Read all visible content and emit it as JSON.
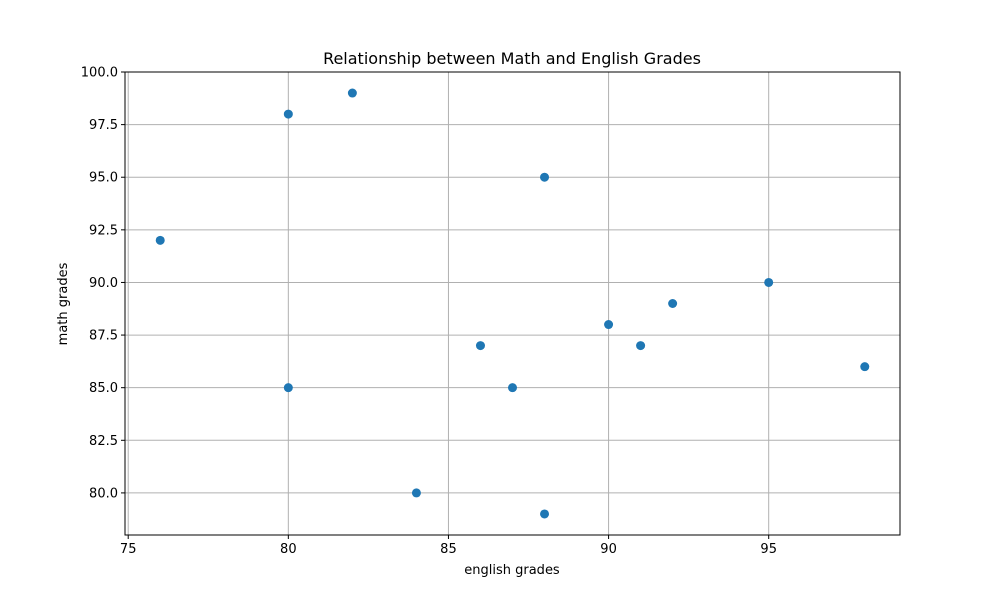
{
  "chart_data": {
    "type": "scatter",
    "title": "Relationship between Math and English Grades",
    "xlabel": "english grades",
    "ylabel": "math grades",
    "xlim": [
      74.9,
      99.1
    ],
    "ylim": [
      78.0,
      100.0
    ],
    "xticks": [
      75,
      80,
      85,
      90,
      95
    ],
    "xtick_labels": [
      "75",
      "80",
      "85",
      "90",
      "95"
    ],
    "yticks": [
      80.0,
      82.5,
      85.0,
      87.5,
      90.0,
      92.5,
      95.0,
      97.5,
      100.0
    ],
    "ytick_labels": [
      "80.0",
      "82.5",
      "85.0",
      "87.5",
      "90.0",
      "92.5",
      "95.0",
      "97.5",
      "100.0"
    ],
    "grid": true,
    "series": [
      {
        "color": "#1f77b4",
        "points": [
          {
            "x": 76,
            "y": 92
          },
          {
            "x": 80,
            "y": 98
          },
          {
            "x": 80,
            "y": 85
          },
          {
            "x": 82,
            "y": 99
          },
          {
            "x": 84,
            "y": 80
          },
          {
            "x": 86,
            "y": 87
          },
          {
            "x": 87,
            "y": 85
          },
          {
            "x": 88,
            "y": 95
          },
          {
            "x": 88,
            "y": 79
          },
          {
            "x": 90,
            "y": 88
          },
          {
            "x": 91,
            "y": 87
          },
          {
            "x": 92,
            "y": 89
          },
          {
            "x": 95,
            "y": 90
          },
          {
            "x": 98,
            "y": 86
          }
        ]
      }
    ]
  }
}
